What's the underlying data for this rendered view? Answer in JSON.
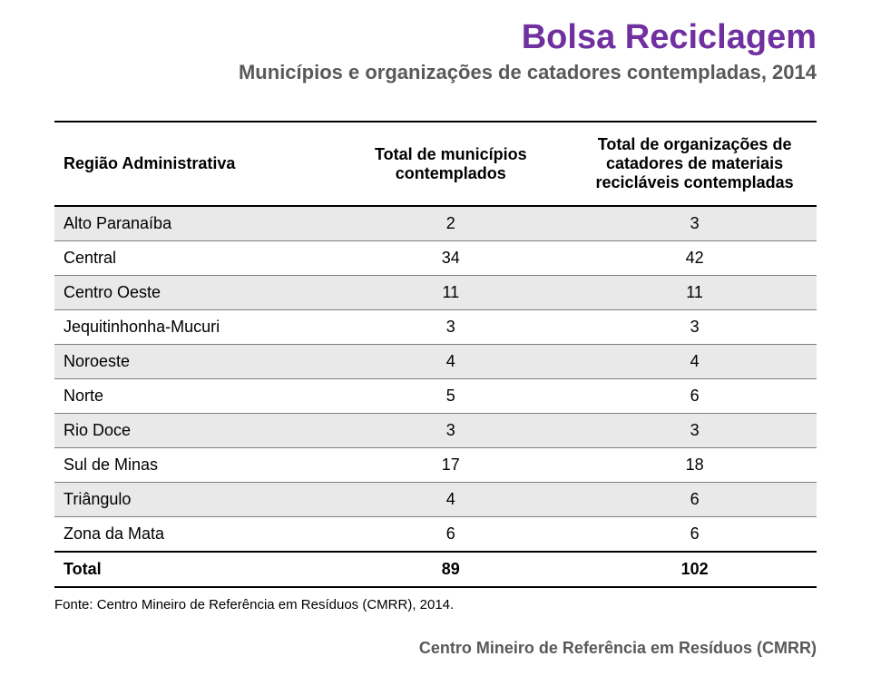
{
  "colors": {
    "title": "#7030a0",
    "subtitle": "#595959",
    "header_text": "#000000",
    "row_odd_bg": "#e9e9e9",
    "row_even_bg": "#ffffff",
    "border_strong": "#000000",
    "border_light": "#7f7f7f",
    "footer": "#595959"
  },
  "title": "Bolsa Reciclagem",
  "subtitle": "Municípios e organizações de catadores contempladas, 2014",
  "table": {
    "columns": [
      "Região Administrativa",
      "Total de municípios contemplados",
      "Total de organizações de catadores de materiais recicláveis contempladas"
    ],
    "rows": [
      {
        "region": "Alto Paranaíba",
        "municipios": 2,
        "organizacoes": 3
      },
      {
        "region": "Central",
        "municipios": 34,
        "organizacoes": 42
      },
      {
        "region": "Centro Oeste",
        "municipios": 11,
        "organizacoes": 11
      },
      {
        "region": "Jequitinhonha-Mucuri",
        "municipios": 3,
        "organizacoes": 3
      },
      {
        "region": "Noroeste",
        "municipios": 4,
        "organizacoes": 4
      },
      {
        "region": "Norte",
        "municipios": 5,
        "organizacoes": 6
      },
      {
        "region": "Rio Doce",
        "municipios": 3,
        "organizacoes": 3
      },
      {
        "region": "Sul de Minas",
        "municipios": 17,
        "organizacoes": 18
      },
      {
        "region": "Triângulo",
        "municipios": 4,
        "organizacoes": 6
      },
      {
        "region": "Zona da Mata",
        "municipios": 6,
        "organizacoes": 6
      }
    ],
    "total": {
      "label": "Total",
      "municipios": 89,
      "organizacoes": 102
    }
  },
  "source": "Fonte: Centro Mineiro de Referência em Resíduos (CMRR), 2014.",
  "footer": "Centro Mineiro de Referência em Resíduos (CMRR)"
}
